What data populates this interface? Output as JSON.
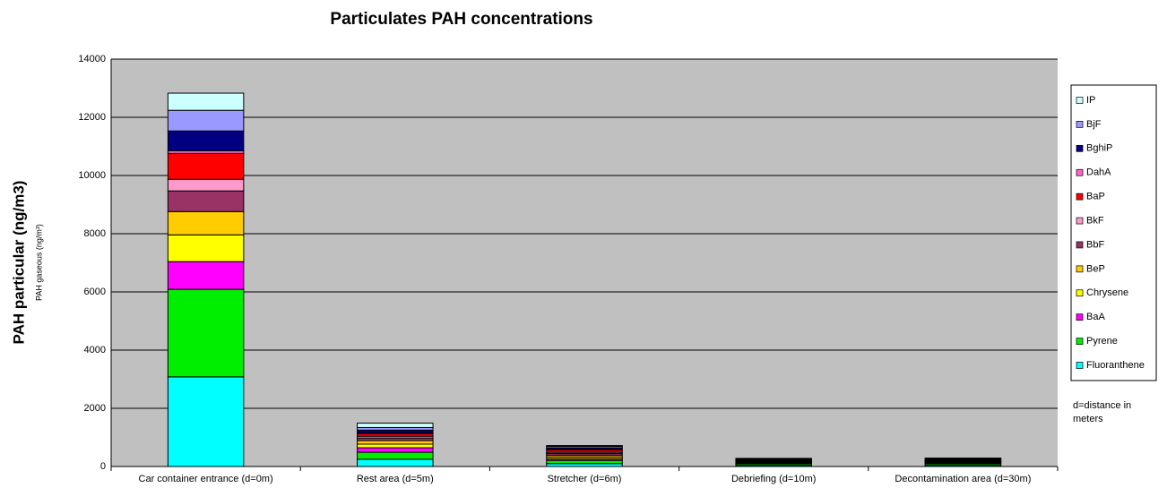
{
  "chart_data": {
    "type": "stacked_bar",
    "title": "Particulates PAH concentrations",
    "y_label": "PAH particular (ng/m3)",
    "y_label_secondary": "PAH gaseous (ng/m³)",
    "annotation": "d=distance in meters",
    "categories": [
      "Car container entrance (d=0m)",
      "Rest area (d=5m)",
      "Stretcher (d=6m)",
      "Debriefing (d=10m)",
      "Decontamination area (d=30m)"
    ],
    "series": [
      {
        "name": "Fluoranthene",
        "color": "#00ffff",
        "values": [
          3080,
          250,
          100,
          40,
          40
        ]
      },
      {
        "name": "Pyrene",
        "color": "#00ee00",
        "values": [
          3010,
          240,
          110,
          50,
          50
        ]
      },
      {
        "name": "BaA",
        "color": "#ff00ff",
        "values": [
          950,
          155,
          60,
          20,
          20
        ]
      },
      {
        "name": "Chrysene",
        "color": "#ffff00",
        "values": [
          920,
          125,
          60,
          20,
          20
        ]
      },
      {
        "name": "BeP",
        "color": "#ffcc00",
        "values": [
          800,
          120,
          60,
          20,
          20
        ]
      },
      {
        "name": "BbF",
        "color": "#993366",
        "values": [
          710,
          90,
          60,
          20,
          20
        ]
      },
      {
        "name": "BkF",
        "color": "#ff99cc",
        "values": [
          400,
          60,
          40,
          10,
          10
        ]
      },
      {
        "name": "BaP",
        "color": "#ff0000",
        "values": [
          890,
          90,
          80,
          30,
          30
        ]
      },
      {
        "name": "DahA",
        "color": "#ff66cc",
        "values": [
          90,
          20,
          10,
          5,
          5
        ]
      },
      {
        "name": "BghiP",
        "color": "#000080",
        "values": [
          680,
          100,
          60,
          30,
          35
        ]
      },
      {
        "name": "BjF",
        "color": "#9999ff",
        "values": [
          710,
          90,
          50,
          20,
          20
        ]
      },
      {
        "name": "IP",
        "color": "#ccffff",
        "values": [
          590,
          150,
          30,
          15,
          20
        ]
      }
    ],
    "ylim": [
      0,
      14000
    ],
    "yticks": [
      0,
      2000,
      4000,
      6000,
      8000,
      10000,
      12000,
      14000
    ],
    "grid": true,
    "legend": "right"
  }
}
